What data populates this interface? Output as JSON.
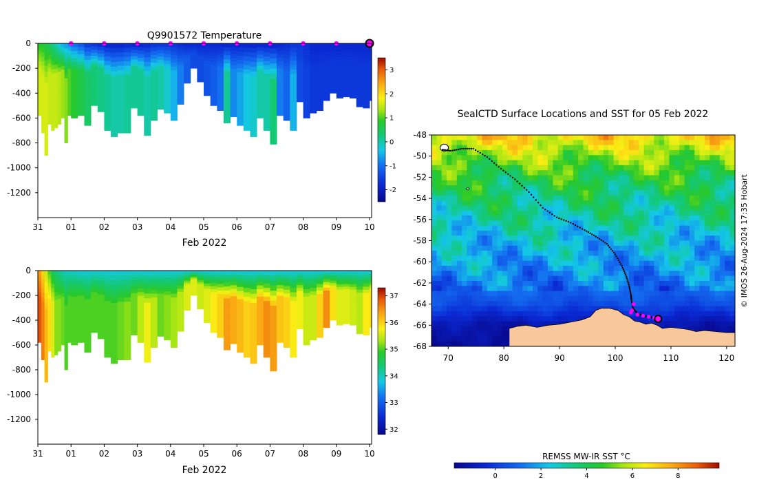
{
  "figure_credit": "© IMOS 26-Aug-2024 17:35 Hobart",
  "colors": {
    "land": "#f8c89c",
    "track": "#000000",
    "daily_marker": "#ff00ff",
    "highlight_ring": "#000000",
    "background": "#ffffff"
  },
  "chart_data": [
    {
      "type": "heatmap",
      "id": "temperature_section",
      "title": "Q9901572  Temperature",
      "xlabel": "Feb 2022",
      "ylabel": "",
      "x_tick_labels": [
        "31",
        "01",
        "02",
        "03",
        "04",
        "05",
        "06",
        "07",
        "08",
        "09",
        "10"
      ],
      "x_range_days": [
        0,
        10
      ],
      "y_ticks": [
        0,
        -200,
        -400,
        -600,
        -800,
        -1000,
        -1200
      ],
      "ylim": [
        -1400,
        0
      ],
      "colorbar": {
        "ticks": [
          3,
          2,
          1,
          0,
          -1,
          -2
        ],
        "range": [
          -2.5,
          3.5
        ],
        "scale": "parula-like"
      },
      "surface_markers_days": [
        1,
        2,
        3,
        4,
        5,
        6,
        7,
        8,
        9
      ],
      "highlight_marker_day": 10,
      "profiles_days": [
        0.0,
        0.1,
        0.2,
        0.3,
        0.4,
        0.5,
        0.6,
        0.7,
        0.8,
        0.9,
        1.0,
        1.2,
        1.4,
        1.6,
        1.8,
        2.0,
        2.2,
        2.4,
        2.6,
        2.8,
        3.0,
        3.2,
        3.4,
        3.6,
        3.8,
        4.0,
        4.2,
        4.4,
        4.6,
        4.8,
        5.0,
        5.2,
        5.4,
        5.6,
        5.8,
        6.0,
        6.2,
        6.4,
        6.6,
        6.8,
        7.0,
        7.2,
        7.4,
        7.6,
        7.8,
        8.0,
        8.2,
        8.4,
        8.6,
        8.8,
        9.0,
        9.2,
        9.4,
        9.6,
        9.8,
        10.0
      ],
      "profile_max_depth_m": [
        580,
        720,
        900,
        650,
        700,
        680,
        650,
        600,
        800,
        580,
        600,
        580,
        660,
        500,
        550,
        700,
        750,
        720,
        720,
        520,
        580,
        740,
        620,
        530,
        560,
        620,
        490,
        320,
        200,
        310,
        420,
        500,
        540,
        640,
        590,
        660,
        700,
        750,
        600,
        700,
        810,
        580,
        620,
        700,
        470,
        600,
        560,
        540,
        460,
        400,
        440,
        430,
        440,
        510,
        520,
        460
      ],
      "series": [
        {
          "name": "surface_temp_C",
          "values": [
            0.8,
            0.8,
            0.6,
            0.5,
            0.2,
            0.0,
            -0.3,
            -0.5,
            -0.6,
            -0.8,
            -1.0,
            -1.2,
            -1.5,
            -1.6,
            -1.7,
            -1.8,
            -1.8,
            -1.8,
            -1.7,
            -1.8,
            -1.8,
            -1.7,
            -1.6,
            -1.6,
            -1.6,
            -1.6,
            -1.7,
            -1.8,
            -1.8,
            -1.8,
            -1.8,
            -1.8,
            -1.8,
            -1.8,
            -1.8,
            -1.8,
            -1.8,
            -1.8,
            -1.8,
            -1.8,
            -1.8,
            -1.8,
            -1.7,
            -1.6,
            -1.6,
            -1.7,
            -1.8,
            -1.8,
            -1.8,
            -1.8,
            -1.8,
            -1.8,
            -1.8,
            -1.8,
            -1.8,
            -1.8
          ]
        },
        {
          "name": "deep_temp_C",
          "values": [
            1.6,
            1.6,
            1.6,
            1.5,
            1.5,
            1.5,
            1.4,
            1.3,
            1.2,
            1.0,
            0.8,
            0.6,
            0.4,
            0.3,
            0.2,
            0.1,
            0.0,
            0.0,
            0.1,
            0.1,
            0.1,
            0.0,
            0.1,
            0.0,
            -0.2,
            -0.5,
            -0.9,
            -1.2,
            -1.4,
            -1.4,
            -1.3,
            -1.2,
            -1.0,
            0.1,
            -0.8,
            -0.6,
            -0.3,
            -0.2,
            0.0,
            0.0,
            0.3,
            -0.9,
            -1.1,
            -0.5,
            -1.4,
            -1.5,
            -1.6,
            -1.6,
            -1.6,
            -1.6,
            -1.6,
            -1.6,
            -1.6,
            -1.6,
            -1.6,
            -1.6
          ]
        }
      ]
    },
    {
      "type": "heatmap",
      "id": "salinity_section",
      "title": "",
      "xlabel": "Feb 2022",
      "ylabel": "",
      "x_tick_labels": [
        "31",
        "01",
        "02",
        "03",
        "04",
        "05",
        "06",
        "07",
        "08",
        "09",
        "10"
      ],
      "x_range_days": [
        0,
        10
      ],
      "y_ticks": [
        0,
        -200,
        -400,
        -600,
        -800,
        -1000,
        -1200
      ],
      "ylim": [
        -1400,
        0
      ],
      "colorbar": {
        "ticks": [
          37,
          36,
          35,
          34,
          33,
          32
        ],
        "range": [
          31.8,
          37.3
        ],
        "scale": "parula-like"
      },
      "profiles_days": "same as temperature_section",
      "series": [
        {
          "name": "surface_salinity",
          "values": [
            36.4,
            36.0,
            35.5,
            35.0,
            34.6,
            34.4,
            34.2,
            34.1,
            34.0,
            34.0,
            34.0,
            33.9,
            33.9,
            33.9,
            33.9,
            33.9,
            33.9,
            33.9,
            33.9,
            33.9,
            33.9,
            33.9,
            33.9,
            33.9,
            33.9,
            33.9,
            33.9,
            33.9,
            33.9,
            33.9,
            33.9,
            33.9,
            33.9,
            33.9,
            33.9,
            33.9,
            33.9,
            33.9,
            33.9,
            33.9,
            33.9,
            33.9,
            33.9,
            33.9,
            33.9,
            33.9,
            33.9,
            33.9,
            33.9,
            33.9,
            33.9,
            33.9,
            33.9,
            33.9,
            33.9,
            33.9
          ]
        },
        {
          "name": "deep_salinity",
          "values": [
            36.9,
            36.6,
            36.2,
            35.9,
            35.6,
            35.2,
            35.2,
            35.1,
            35.0,
            35.0,
            35.0,
            35.0,
            35.0,
            35.0,
            35.0,
            35.0,
            35.0,
            35.1,
            35.2,
            35.1,
            35.4,
            35.7,
            35.4,
            35.1,
            35.2,
            35.3,
            35.4,
            35.6,
            35.6,
            35.5,
            35.6,
            35.8,
            36.0,
            36.4,
            36.3,
            36.2,
            36.0,
            36.1,
            36.3,
            36.5,
            36.4,
            36.1,
            36.0,
            35.8,
            35.7,
            35.5,
            35.5,
            36.0,
            36.5,
            35.9,
            35.6,
            35.6,
            35.5,
            35.4,
            35.8,
            35.9
          ]
        }
      ]
    },
    {
      "type": "heatmap",
      "id": "sst_map",
      "title": "SealCTD Surface Locations and SST for 05 Feb 2022",
      "xlabel": "",
      "ylabel": "",
      "x_ticks": [
        70,
        80,
        90,
        100,
        110,
        120
      ],
      "y_ticks": [
        -48,
        -50,
        -52,
        -54,
        -56,
        -58,
        -60,
        -62,
        -64,
        -66,
        -68
      ],
      "xlim": [
        67,
        121.5
      ],
      "ylim": [
        -68,
        -48
      ],
      "colorbar": {
        "label": "REMSS MW-IR SST °C",
        "ticks": [
          0,
          2,
          4,
          6,
          8
        ],
        "range": [
          -1.8,
          9.8
        ]
      },
      "sst_by_latitude": {
        "lat": [
          -48,
          -50,
          -52,
          -54,
          -56,
          -58,
          -60,
          -62,
          -64,
          -66,
          -68
        ],
        "sst_C": [
          7.0,
          5.5,
          4.3,
          3.6,
          3.0,
          2.3,
          1.8,
          1.2,
          0.4,
          -1.2,
          -1.6
        ]
      },
      "track": {
        "lon": [
          69.0,
          70.5,
          72.5,
          74.5,
          77.0,
          79.5,
          82.0,
          84.5,
          87.0,
          89.5,
          92.0,
          94.5,
          96.5,
          98.5,
          100.0,
          101.2,
          102.0,
          102.5,
          102.8,
          102.9,
          103.2,
          104.0,
          105.0,
          106.0,
          107.0,
          107.7
        ],
        "lat": [
          -49.4,
          -49.5,
          -49.3,
          -49.3,
          -50.1,
          -51.2,
          -52.2,
          -53.4,
          -54.9,
          -55.8,
          -56.3,
          -57.0,
          -57.6,
          -58.3,
          -59.3,
          -60.4,
          -61.4,
          -62.3,
          -63.1,
          -63.6,
          -64.4,
          -64.9,
          -65.1,
          -65.2,
          -65.3,
          -65.4
        ]
      },
      "daily_markers": {
        "lon": [
          103.3,
          103.0,
          102.8,
          104.0,
          105.0,
          106.0,
          107.0
        ],
        "lat": [
          -64.0,
          -64.6,
          -64.8,
          -65.0,
          -65.1,
          -65.2,
          -65.3
        ]
      },
      "highlight_position": {
        "lon": 107.7,
        "lat": -65.4
      },
      "coastline": {
        "lon": [
          81.0,
          82.5,
          84.0,
          86.0,
          88.0,
          90.0,
          92.0,
          94.0,
          95.5,
          96.5,
          97.5,
          99.0,
          100.5,
          101.5,
          102.5,
          103.5,
          104.5,
          105.5,
          106.5,
          107.5,
          108.5,
          110.0,
          111.5,
          113.0,
          114.5,
          116.0,
          118.0,
          120.0,
          121.5
        ],
        "lat": [
          -66.3,
          -66.1,
          -66.0,
          -66.2,
          -66.0,
          -65.9,
          -65.7,
          -65.5,
          -65.2,
          -64.6,
          -64.4,
          -64.4,
          -64.6,
          -65.0,
          -65.2,
          -65.6,
          -65.7,
          -65.9,
          -65.8,
          -66.0,
          -66.3,
          -66.2,
          -66.3,
          -66.4,
          -66.6,
          -66.5,
          -66.6,
          -66.7,
          -66.7
        ]
      }
    }
  ]
}
